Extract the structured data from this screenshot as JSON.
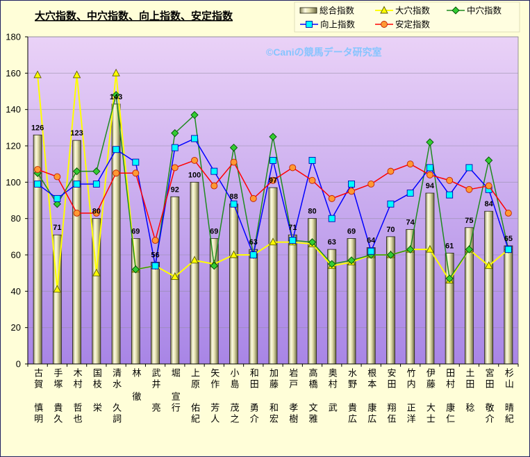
{
  "chart_data": {
    "type": "bar",
    "title": "大穴指数、中穴指数、向上指数、安定指数",
    "watermark": "©Caniの競馬データ研究室",
    "ylim": [
      0,
      180
    ],
    "yticks": [
      0,
      20,
      40,
      60,
      80,
      100,
      120,
      140,
      160,
      180
    ],
    "grid": true,
    "legend_position": "top-right",
    "categories": [
      "古賀 慎明",
      "手塚 貴久",
      "木村 哲也",
      "国枝 栄",
      "清水 久詞",
      "林 徹",
      "武井 亮",
      "堀 宣行",
      "上原 佑紀",
      "矢作 芳人",
      "小島 茂之",
      "和田 勇介",
      "加藤 和宏",
      "岩戸 孝樹",
      "高橋 文雅",
      "奥村 武",
      "水野 貴広",
      "根本 康広",
      "安田 翔伍",
      "竹内 正洋",
      "伊藤 大士",
      "田村 康仁",
      "土田 稔",
      "宮田 敬介",
      "杉山 晴紀"
    ],
    "series": [
      {
        "name": "総合指数",
        "type": "bar",
        "data_labels": true,
        "color": "#e6e2b0",
        "values": [
          126,
          71,
          123,
          80,
          143,
          69,
          56,
          92,
          100,
          69,
          88,
          63,
          97,
          71,
          80,
          63,
          69,
          64,
          70,
          74,
          94,
          61,
          75,
          84,
          65
        ]
      },
      {
        "name": "大穴指数",
        "type": "line",
        "marker": "triangle",
        "color": "#ffff00",
        "marker_color": "#ffff00",
        "marker_edge": "#5a5a00",
        "values": [
          159,
          41,
          159,
          50,
          160,
          52,
          54,
          48,
          57,
          55,
          60,
          60,
          67,
          67,
          66,
          54,
          56,
          60,
          60,
          63,
          63,
          46,
          63,
          54,
          63
        ]
      },
      {
        "name": "中穴指数",
        "type": "line",
        "marker": "diamond",
        "color": "#1f8a1f",
        "marker_color": "#33cc33",
        "marker_edge": "#004d00",
        "values": [
          105,
          88,
          106,
          106,
          148,
          52,
          54,
          127,
          137,
          54,
          119,
          60,
          125,
          68,
          67,
          55,
          57,
          60,
          60,
          63,
          122,
          47,
          63,
          112,
          63
        ]
      },
      {
        "name": "向上指数",
        "type": "line",
        "marker": "square",
        "color": "#0000ff",
        "marker_color": "#00ffff",
        "marker_edge": "#0000b0",
        "values": [
          99,
          91,
          99,
          99,
          118,
          111,
          54,
          119,
          124,
          106,
          88,
          60,
          112,
          68,
          112,
          80,
          99,
          62,
          88,
          94,
          108,
          93,
          108,
          96,
          63
        ]
      },
      {
        "name": "安定指数",
        "type": "line",
        "marker": "circle",
        "color": "#ff0000",
        "marker_color": "#ff9933",
        "marker_edge": "#c02000",
        "values": [
          107,
          103,
          83,
          83,
          105,
          105,
          68,
          108,
          112,
          98,
          111,
          91,
          101,
          108,
          101,
          91,
          95,
          99,
          106,
          110,
          104,
          101,
          96,
          98,
          83
        ]
      }
    ]
  }
}
